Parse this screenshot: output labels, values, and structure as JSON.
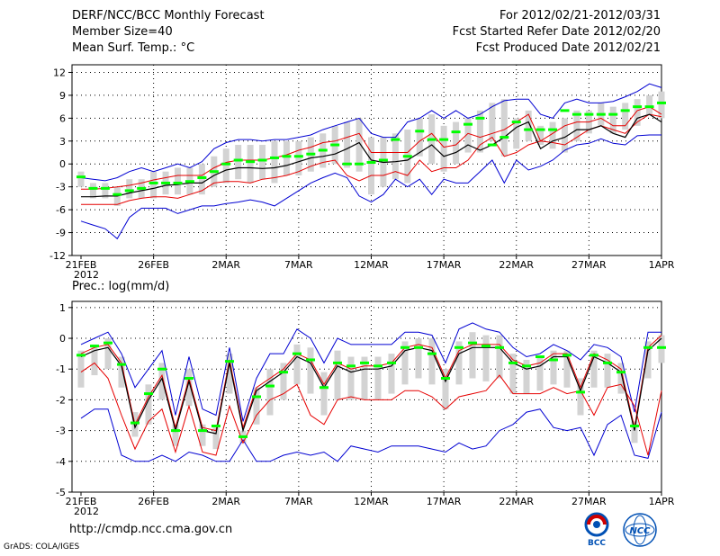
{
  "header": {
    "title": "DERF/NCC/BCC Monthly Forecast",
    "member_size": "Member Size=40",
    "variable": "Mean Surf. Temp.: °C",
    "period": "For 2012/02/21-2012/03/31",
    "started": "Fcst Started Refer Date 2012/02/20",
    "produced": "Fcst Produced Date 2012/02/21"
  },
  "footer": {
    "url": "http://cmdp.ncc.cma.gov.cn",
    "credit": "GrADS: COLA/IGES",
    "logo_left_text": "BCC",
    "logo_right_text": "NCC"
  },
  "colors": {
    "box": "#d3d3d3",
    "median": "#00ff00",
    "ensemble_mean": "#000000",
    "spread": "#e60000",
    "extreme": "#0000d2",
    "grid": "#000000"
  },
  "chart_data": [
    {
      "type": "line",
      "title": "Mean Surf. Temp.: °C",
      "ylabel": "°C",
      "ylim": [
        -12,
        13
      ],
      "yticks": [
        -12,
        -9,
        -6,
        -3,
        0,
        3,
        6,
        9,
        12
      ],
      "x_tick_labels": [
        "21FEB",
        "26FEB",
        "2MAR",
        "7MAR",
        "12MAR",
        "17MAR",
        "22MAR",
        "27MAR",
        "1APR"
      ],
      "x_tick_days": [
        0,
        5,
        10,
        15,
        20,
        25,
        30,
        35,
        40
      ],
      "year_label": "2012",
      "series": [
        {
          "name": "max",
          "values": [
            -7.5,
            -8,
            -8.5,
            -9.8,
            -7,
            -5.8,
            -5.8,
            -5.8,
            -6.5,
            -6,
            -5.5,
            -5.5,
            -5.2,
            -5,
            -4.7,
            -5,
            -5.5,
            -4.5,
            -3.5,
            -2.5,
            -1.8,
            -1.2,
            -1.8,
            -4.2,
            -5,
            -4,
            -2,
            -3,
            -2,
            -4,
            -2,
            -2.5,
            -2.5,
            -1,
            0.5,
            -2.5,
            0.5,
            -0.8,
            -0.3,
            0.5,
            1.8,
            2.5,
            2.7,
            3.3,
            2.7,
            2.5,
            3.7,
            3.8,
            3.8
          ]
        },
        {
          "name": "lo",
          "values": [
            -5.3,
            -5.3,
            -5.3,
            -5.3,
            -4.8,
            -4.5,
            -4.3,
            -4.3,
            -4.5,
            -4,
            -3.5,
            -2.5,
            -2.3,
            -2.3,
            -2.5,
            -2,
            -1.8,
            -1.5,
            -1,
            -0.3,
            0.2,
            0.5,
            -1.5,
            -2.2,
            -1.5,
            -1.5,
            -1,
            -1.5,
            0.5,
            -1,
            -0.5,
            -0.5,
            0.5,
            2.5,
            3.5,
            1,
            1.5,
            2.5,
            3,
            2.8,
            2.5,
            3.5,
            4.5,
            5,
            4.5,
            4,
            5.5,
            6.5,
            6.2
          ]
        },
        {
          "name": "mean",
          "values": [
            -4.3,
            -4.3,
            -4.2,
            -4.2,
            -3.8,
            -3.5,
            -3.2,
            -2.8,
            -2.7,
            -2.5,
            -2.5,
            -1.5,
            -0.8,
            -0.5,
            -0.5,
            -0.6,
            -0.5,
            -0.2,
            0.3,
            0.8,
            1,
            1.3,
            2,
            2.8,
            0.5,
            0.2,
            0.3,
            0.5,
            1.5,
            2.5,
            1,
            1.5,
            2.5,
            1.8,
            2.5,
            3.5,
            4.8,
            5.5,
            2,
            3,
            3.5,
            4.5,
            4.5,
            5,
            4,
            3.5,
            6,
            6.5,
            5.5
          ]
        },
        {
          "name": "hi",
          "values": [
            -3.3,
            -3.3,
            -3.2,
            -3,
            -2.8,
            -2.5,
            -2.1,
            -1.8,
            -1.5,
            -1.5,
            -1.5,
            -0.5,
            0.2,
            0.5,
            0.5,
            0.5,
            0.8,
            1.2,
            1.8,
            2.2,
            2.8,
            3,
            3.5,
            4,
            1.5,
            1.5,
            1.5,
            1.5,
            3,
            4,
            2.2,
            2.5,
            4,
            3.5,
            4,
            4.5,
            5.5,
            6.5,
            3,
            4,
            5,
            5.5,
            5.5,
            6,
            5,
            5,
            7,
            7.5,
            6.5
          ]
        },
        {
          "name": "min",
          "values": [
            -1.8,
            -2,
            -2.2,
            -1.8,
            -1,
            -0.5,
            -1,
            -0.5,
            0,
            -0.5,
            0.3,
            2,
            2.8,
            3.2,
            3.2,
            3,
            3.2,
            3.2,
            3.5,
            3.8,
            4.5,
            5,
            5.5,
            6,
            4,
            3.5,
            3.5,
            5.5,
            6,
            7,
            6,
            7,
            6,
            6.5,
            7.5,
            8.3,
            8.5,
            8.5,
            6.5,
            6,
            8,
            8.5,
            8,
            8,
            8.2,
            8.8,
            9.5,
            10.5,
            10
          ]
        },
        {
          "name": "median",
          "values": [
            -1.7,
            -3.2,
            -3.2,
            -4,
            -3.5,
            -3.2,
            -2.5,
            -2.5,
            -2.5,
            -2.3,
            -1.8,
            -1,
            0,
            0.5,
            0.3,
            0.5,
            0.8,
            1,
            1,
            1.3,
            1.8,
            2.5,
            0,
            0,
            0.2,
            0.5,
            3.2,
            1,
            4.3,
            3.2,
            3.2,
            4.2,
            5.2,
            6,
            2.5,
            3.5,
            5.5,
            4.5,
            4.5,
            4.5,
            7,
            6.5,
            6.5,
            6.5,
            6.5,
            7,
            7.5,
            7.5,
            8
          ]
        },
        {
          "name": "box_low",
          "values": [
            -3,
            -4.5,
            -4.5,
            -5.5,
            -4.5,
            -4.5,
            -4.5,
            -4,
            -4,
            -4,
            -4,
            -3,
            -2.5,
            -2,
            -2.5,
            -2,
            -2.5,
            -1.5,
            -1.5,
            -1,
            -0.5,
            0,
            -0.5,
            -1,
            -4,
            -3,
            -2,
            -2.5,
            1,
            0,
            -1,
            0,
            1.5,
            1.5,
            3,
            1,
            2,
            3,
            2.5,
            2,
            1.5,
            3,
            4,
            5,
            4,
            4.5,
            5,
            6.5,
            6
          ]
        },
        {
          "name": "box_high",
          "values": [
            -1,
            -2.5,
            -2.5,
            -3,
            -2,
            -2,
            -1,
            -1,
            -0.5,
            -0.5,
            0,
            1,
            2,
            2.5,
            2.5,
            2.5,
            3,
            3,
            3,
            3.5,
            4,
            5,
            5.5,
            6,
            3.5,
            3.5,
            4,
            4.5,
            6,
            6.5,
            5,
            5.5,
            6,
            7,
            8,
            8.5,
            6,
            7,
            5,
            5.5,
            6,
            7,
            7,
            8,
            7.5,
            8,
            8.5,
            9,
            9.5
          ]
        }
      ]
    },
    {
      "type": "line",
      "title": "Prec.: log(mm/d)",
      "ylabel": "log(mm/d)",
      "ylim": [
        -5,
        1.2
      ],
      "yticks": [
        -5,
        -4,
        -3,
        -2,
        -1,
        0,
        1
      ],
      "x_tick_labels": [
        "21FEB",
        "26FEB",
        "2MAR",
        "7MAR",
        "12MAR",
        "17MAR",
        "22MAR",
        "27MAR",
        "1APR"
      ],
      "x_tick_days": [
        0,
        5,
        10,
        15,
        20,
        25,
        30,
        35,
        40
      ],
      "year_label": "2012",
      "series": [
        {
          "name": "max",
          "values": [
            -2.6,
            -2.3,
            -2.3,
            -3.8,
            -4,
            -4,
            -3.8,
            -4,
            -3.7,
            -3.8,
            -4,
            -4,
            -3.3,
            -4,
            -4,
            -3.8,
            -3.7,
            -3.8,
            -3.7,
            -4,
            -3.5,
            -3.6,
            -3.7,
            -3.5,
            -3.5,
            -3.5,
            -3.6,
            -3.7,
            -3.4,
            -3.6,
            -3.5,
            -3,
            -2.8,
            -2.4,
            -2.3,
            -2.9,
            -3,
            -2.9,
            -3.8,
            -2.8,
            -2.5,
            -3.8,
            -3.9,
            -2.4
          ]
        },
        {
          "name": "lo",
          "values": [
            -1.1,
            -0.8,
            -1.3,
            -2.5,
            -3.6,
            -2.7,
            -2.3,
            -3.7,
            -2.2,
            -3.7,
            -3.8,
            -2.2,
            -3.4,
            -2.5,
            -2,
            -1.8,
            -1.5,
            -2.5,
            -2.8,
            -2,
            -1.9,
            -2,
            -2,
            -2,
            -1.7,
            -1.7,
            -1.9,
            -2.3,
            -1.9,
            -1.8,
            -1.7,
            -1.2,
            -1.8,
            -1.8,
            -1.8,
            -1.6,
            -1.8,
            -1.7,
            -2.5,
            -1.6,
            -1.5,
            -2.2,
            -3.8,
            -1.7
          ]
        },
        {
          "name": "mean",
          "values": [
            -0.6,
            -0.4,
            -0.3,
            -0.9,
            -2.9,
            -2,
            -1.3,
            -3,
            -1.4,
            -3,
            -3.1,
            -0.8,
            -3,
            -1.7,
            -1.4,
            -1.1,
            -0.6,
            -0.8,
            -1.6,
            -0.9,
            -1.1,
            -1,
            -1,
            -0.9,
            -0.4,
            -0.3,
            -0.4,
            -1.4,
            -0.5,
            -0.3,
            -0.3,
            -0.3,
            -0.8,
            -1,
            -0.9,
            -0.6,
            -0.6,
            -1.7,
            -0.6,
            -0.8,
            -1.1,
            -3,
            -0.4,
            0
          ]
        },
        {
          "name": "hi",
          "values": [
            -0.5,
            -0.3,
            -0.2,
            -0.8,
            -2.8,
            -1.9,
            -1.2,
            -2.9,
            -1.3,
            -2.9,
            -3,
            -0.7,
            -2.9,
            -1.6,
            -1.3,
            -1,
            -0.5,
            -0.7,
            -1.5,
            -0.8,
            -1,
            -0.9,
            -0.9,
            -0.8,
            -0.3,
            -0.2,
            -0.3,
            -1.3,
            -0.4,
            -0.2,
            -0.2,
            -0.2,
            -0.7,
            -0.9,
            -0.8,
            -0.5,
            -0.5,
            -1.6,
            -0.5,
            -0.7,
            -1,
            -2.9,
            -0.3,
            0.1
          ]
        },
        {
          "name": "min",
          "values": [
            -0.2,
            0,
            0.2,
            -0.5,
            -1.6,
            -1,
            -0.4,
            -2.5,
            -0.6,
            -2.3,
            -2.5,
            -0.3,
            -2.7,
            -1.3,
            -0.5,
            -0.5,
            0.3,
            0,
            -0.8,
            0,
            -0.2,
            -0.2,
            -0.2,
            -0.2,
            0.2,
            0.2,
            0.1,
            -0.8,
            0.3,
            0.5,
            0.3,
            0.2,
            -0.3,
            -0.6,
            -0.5,
            -0.2,
            -0.4,
            -0.7,
            -0.2,
            -0.3,
            -0.6,
            -2.4,
            0.2,
            0.2
          ]
        },
        {
          "name": "median",
          "values": [
            -0.55,
            -0.25,
            -0.15,
            -0.85,
            -2.75,
            -1.8,
            -1,
            -3,
            -1.3,
            -3,
            -2.85,
            -0.75,
            -3.2,
            -1.9,
            -1.55,
            -1.1,
            -0.5,
            -0.7,
            -1.6,
            -0.8,
            -0.9,
            -0.8,
            -0.9,
            -0.8,
            -0.3,
            -0.3,
            -0.5,
            -1.3,
            -0.3,
            -0.15,
            -0.25,
            -0.3,
            -0.8,
            -0.9,
            -0.6,
            -0.7,
            -0.55,
            -1.75,
            -0.55,
            -0.8,
            -1.1,
            -2.85,
            -0.3,
            -0.3
          ]
        },
        {
          "name": "box_low",
          "values": [
            -1.6,
            -1.2,
            -1,
            -1.6,
            -3.2,
            -2.8,
            -2,
            -3.5,
            -2.2,
            -3.5,
            -3.6,
            -1.8,
            -3.4,
            -2.8,
            -2.5,
            -2,
            -1.5,
            -1.8,
            -2.5,
            -2,
            -2,
            -2,
            -2,
            -1.8,
            -1.5,
            -1.3,
            -1.5,
            -2.3,
            -1.5,
            -1.3,
            -1.4,
            -1.3,
            -1.8,
            -1.8,
            -1.7,
            -1.5,
            -1.6,
            -2.5,
            -1.6,
            -1.6,
            -1.8,
            -3.4,
            -1.3,
            -0.8
          ]
        },
        {
          "name": "box_high",
          "values": [
            -0.4,
            -0.2,
            0,
            -0.6,
            -2.4,
            -1.5,
            -0.8,
            -2.8,
            -1,
            -2.8,
            -2.9,
            -0.5,
            -3,
            -1.6,
            -1,
            -0.8,
            -0.2,
            -0.3,
            -1.1,
            -0.4,
            -0.6,
            -0.6,
            -0.6,
            -0.5,
            -0.1,
            0,
            0,
            -1,
            -0.1,
            0.2,
            0.1,
            0.1,
            -0.5,
            -0.7,
            -0.6,
            -0.4,
            -0.4,
            -1.3,
            -0.4,
            -0.5,
            -0.8,
            -2.7,
            -0.1,
            0.1
          ]
        }
      ]
    }
  ]
}
